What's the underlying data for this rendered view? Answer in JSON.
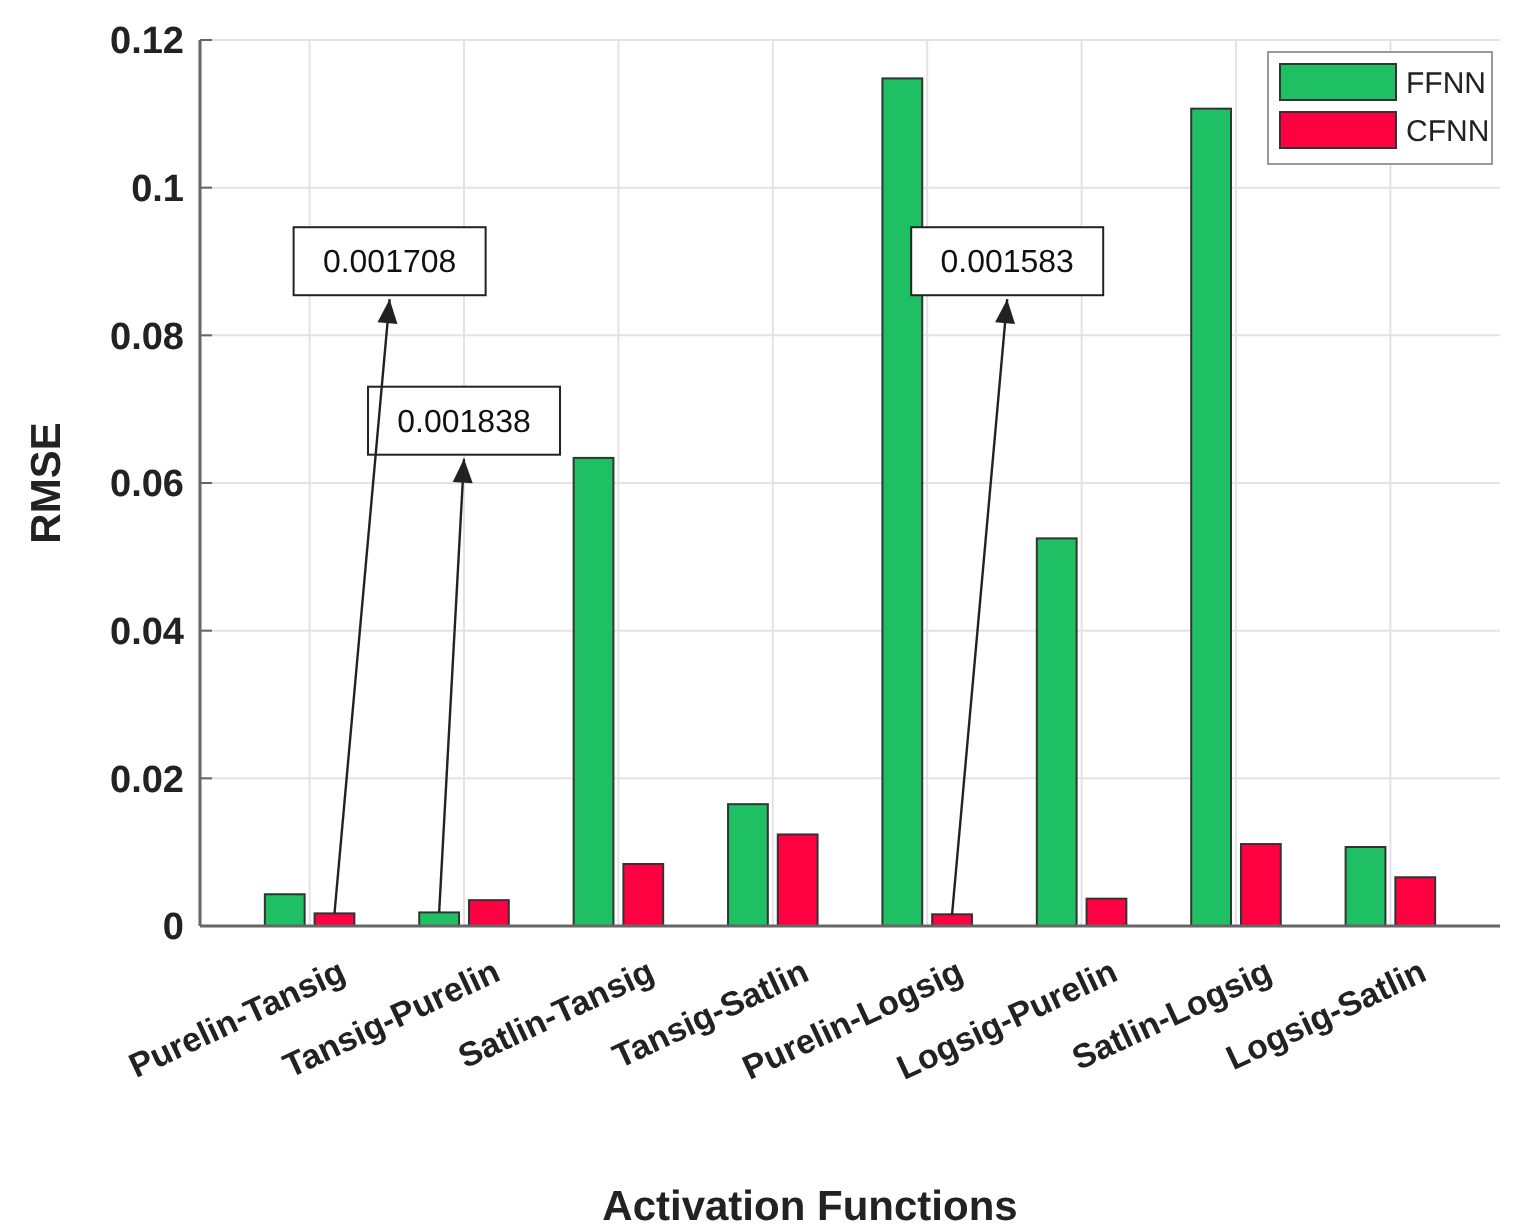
{
  "chart_data": {
    "type": "bar",
    "xlabel": "Activation Functions",
    "ylabel": "RMSE",
    "categories": [
      "Purelin-Tansig",
      "Tansig-Purelin",
      "Satlin-Tansig",
      "Tansig-Satlin",
      "Purelin-Logsig",
      "Logsig-Purelin",
      "Satlin-Logsig",
      "Logsig-Satlin"
    ],
    "series": [
      {
        "name": "FFNN",
        "color": "#1fbf64",
        "values": [
          0.0043,
          0.001838,
          0.0634,
          0.0165,
          0.1148,
          0.0525,
          0.1107,
          0.0107
        ],
        "value_labels": [
          null,
          "0.001838",
          null,
          null,
          null,
          null,
          null,
          null
        ]
      },
      {
        "name": "CFNN",
        "color": "#ff0040",
        "values": [
          0.001708,
          0.0035,
          0.0084,
          0.0124,
          0.001583,
          0.0037,
          0.0111,
          0.0066
        ],
        "value_labels": [
          "0.001708",
          null,
          null,
          null,
          "0.001583",
          null,
          null,
          null
        ]
      }
    ],
    "ylim": [
      0,
      0.12
    ],
    "yticks": [
      {
        "value": 0,
        "label": "0"
      },
      0.02,
      0.04,
      0.06,
      0.08,
      0.1,
      0.12
    ],
    "grid": true,
    "legend": "top right"
  }
}
